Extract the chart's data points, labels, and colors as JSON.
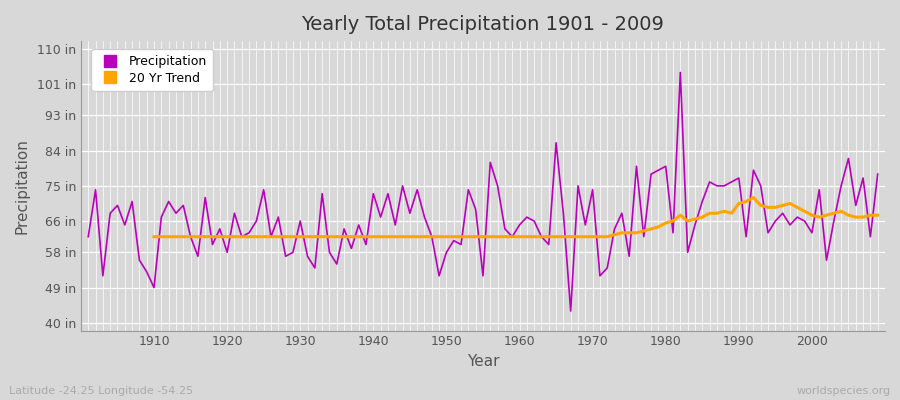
{
  "title": "Yearly Total Precipitation 1901 - 2009",
  "xlabel": "Year",
  "ylabel": "Precipitation",
  "subtitle": "Latitude -24.25 Longitude -54.25",
  "watermark": "worldspecies.org",
  "bg_color": "#d8d8d8",
  "plot_bg_color": "#d8d8d8",
  "precip_color": "#bb00bb",
  "trend_color": "#ffa500",
  "years": [
    1901,
    1902,
    1903,
    1904,
    1905,
    1906,
    1907,
    1908,
    1909,
    1910,
    1911,
    1912,
    1913,
    1914,
    1915,
    1916,
    1917,
    1918,
    1919,
    1920,
    1921,
    1922,
    1923,
    1924,
    1925,
    1926,
    1927,
    1928,
    1929,
    1930,
    1931,
    1932,
    1933,
    1934,
    1935,
    1936,
    1937,
    1938,
    1939,
    1940,
    1941,
    1942,
    1943,
    1944,
    1945,
    1946,
    1947,
    1948,
    1949,
    1950,
    1951,
    1952,
    1953,
    1954,
    1955,
    1956,
    1957,
    1958,
    1959,
    1960,
    1961,
    1962,
    1963,
    1964,
    1965,
    1966,
    1967,
    1968,
    1969,
    1970,
    1971,
    1972,
    1973,
    1974,
    1975,
    1976,
    1977,
    1978,
    1979,
    1980,
    1981,
    1982,
    1983,
    1984,
    1985,
    1986,
    1987,
    1988,
    1989,
    1990,
    1991,
    1992,
    1993,
    1994,
    1995,
    1996,
    1997,
    1998,
    1999,
    2000,
    2001,
    2002,
    2003,
    2004,
    2005,
    2006,
    2007,
    2008,
    2009
  ],
  "precip_in": [
    62,
    74,
    52,
    68,
    70,
    65,
    71,
    56,
    53,
    49,
    67,
    71,
    68,
    70,
    62,
    57,
    72,
    60,
    64,
    58,
    68,
    62,
    63,
    66,
    74,
    62,
    67,
    57,
    58,
    66,
    57,
    54,
    73,
    58,
    55,
    64,
    59,
    65,
    60,
    73,
    67,
    73,
    65,
    75,
    68,
    74,
    67,
    62,
    52,
    58,
    61,
    60,
    74,
    69,
    52,
    81,
    75,
    64,
    62,
    65,
    67,
    66,
    62,
    60,
    86,
    68,
    43,
    75,
    65,
    74,
    52,
    54,
    64,
    68,
    57,
    80,
    62,
    78,
    79,
    80,
    63,
    104,
    58,
    65,
    71,
    76,
    75,
    75,
    76,
    77,
    62,
    79,
    75,
    63,
    66,
    68,
    65,
    67,
    66,
    63,
    74,
    56,
    66,
    75,
    82,
    70,
    77,
    62,
    78
  ],
  "trend_years": [
    1910,
    1911,
    1912,
    1913,
    1914,
    1915,
    1916,
    1917,
    1918,
    1919,
    1920,
    1921,
    1922,
    1923,
    1924,
    1925,
    1926,
    1927,
    1928,
    1929,
    1930,
    1931,
    1932,
    1933,
    1934,
    1935,
    1936,
    1937,
    1938,
    1939,
    1940,
    1941,
    1942,
    1943,
    1944,
    1945,
    1946,
    1947,
    1948,
    1949,
    1950,
    1951,
    1952,
    1953,
    1954,
    1955,
    1956,
    1957,
    1958,
    1959,
    1960,
    1961,
    1962,
    1963,
    1964,
    1965,
    1966,
    1967,
    1968,
    1969,
    1970,
    1971,
    1972,
    1973,
    1974,
    1975,
    1976,
    1977,
    1978,
    1979,
    1980,
    1981,
    1982,
    1983,
    1984,
    1985,
    1986,
    1987,
    1988,
    1989,
    1990,
    1991,
    1992,
    1993,
    1994,
    1995,
    1996,
    1997,
    1998,
    1999,
    2000,
    2001,
    2002,
    2003,
    2004,
    2005,
    2006,
    2007,
    2008,
    2009
  ],
  "trend_in": [
    62.0,
    62.0,
    62.0,
    62.0,
    62.0,
    62.0,
    62.0,
    62.0,
    62.0,
    62.0,
    62.0,
    62.0,
    62.0,
    62.0,
    62.0,
    62.0,
    62.0,
    62.0,
    62.0,
    62.0,
    62.0,
    62.0,
    62.0,
    62.0,
    62.0,
    62.0,
    62.0,
    62.0,
    62.0,
    62.0,
    62.0,
    62.0,
    62.0,
    62.0,
    62.0,
    62.0,
    62.0,
    62.0,
    62.0,
    62.0,
    62.0,
    62.0,
    62.0,
    62.0,
    62.0,
    62.0,
    62.0,
    62.0,
    62.0,
    62.0,
    62.0,
    62.0,
    62.0,
    62.0,
    62.0,
    62.0,
    62.0,
    62.0,
    62.0,
    62.0,
    62.0,
    62.0,
    62.0,
    62.5,
    63.0,
    63.0,
    63.0,
    63.5,
    64.0,
    64.5,
    65.5,
    66.0,
    67.5,
    66.0,
    66.5,
    67.0,
    68.0,
    68.0,
    68.5,
    68.0,
    70.5,
    71.0,
    72.0,
    70.0,
    69.5,
    69.5,
    70.0,
    70.5,
    69.5,
    68.5,
    67.5,
    67.0,
    67.5,
    68.0,
    68.5,
    67.5,
    67.0,
    67.0,
    67.5,
    67.5
  ],
  "yticks": [
    40,
    49,
    58,
    66,
    75,
    84,
    93,
    101,
    110
  ],
  "ytick_labels": [
    "40 in",
    "49 in",
    "58 in",
    "66 in",
    "75 in",
    "84 in",
    "93 in",
    "101 in",
    "110 in"
  ],
  "xticks": [
    1910,
    1920,
    1930,
    1940,
    1950,
    1960,
    1970,
    1980,
    1990,
    2000
  ],
  "ylim": [
    38,
    112
  ],
  "xlim": [
    1900,
    2010
  ]
}
